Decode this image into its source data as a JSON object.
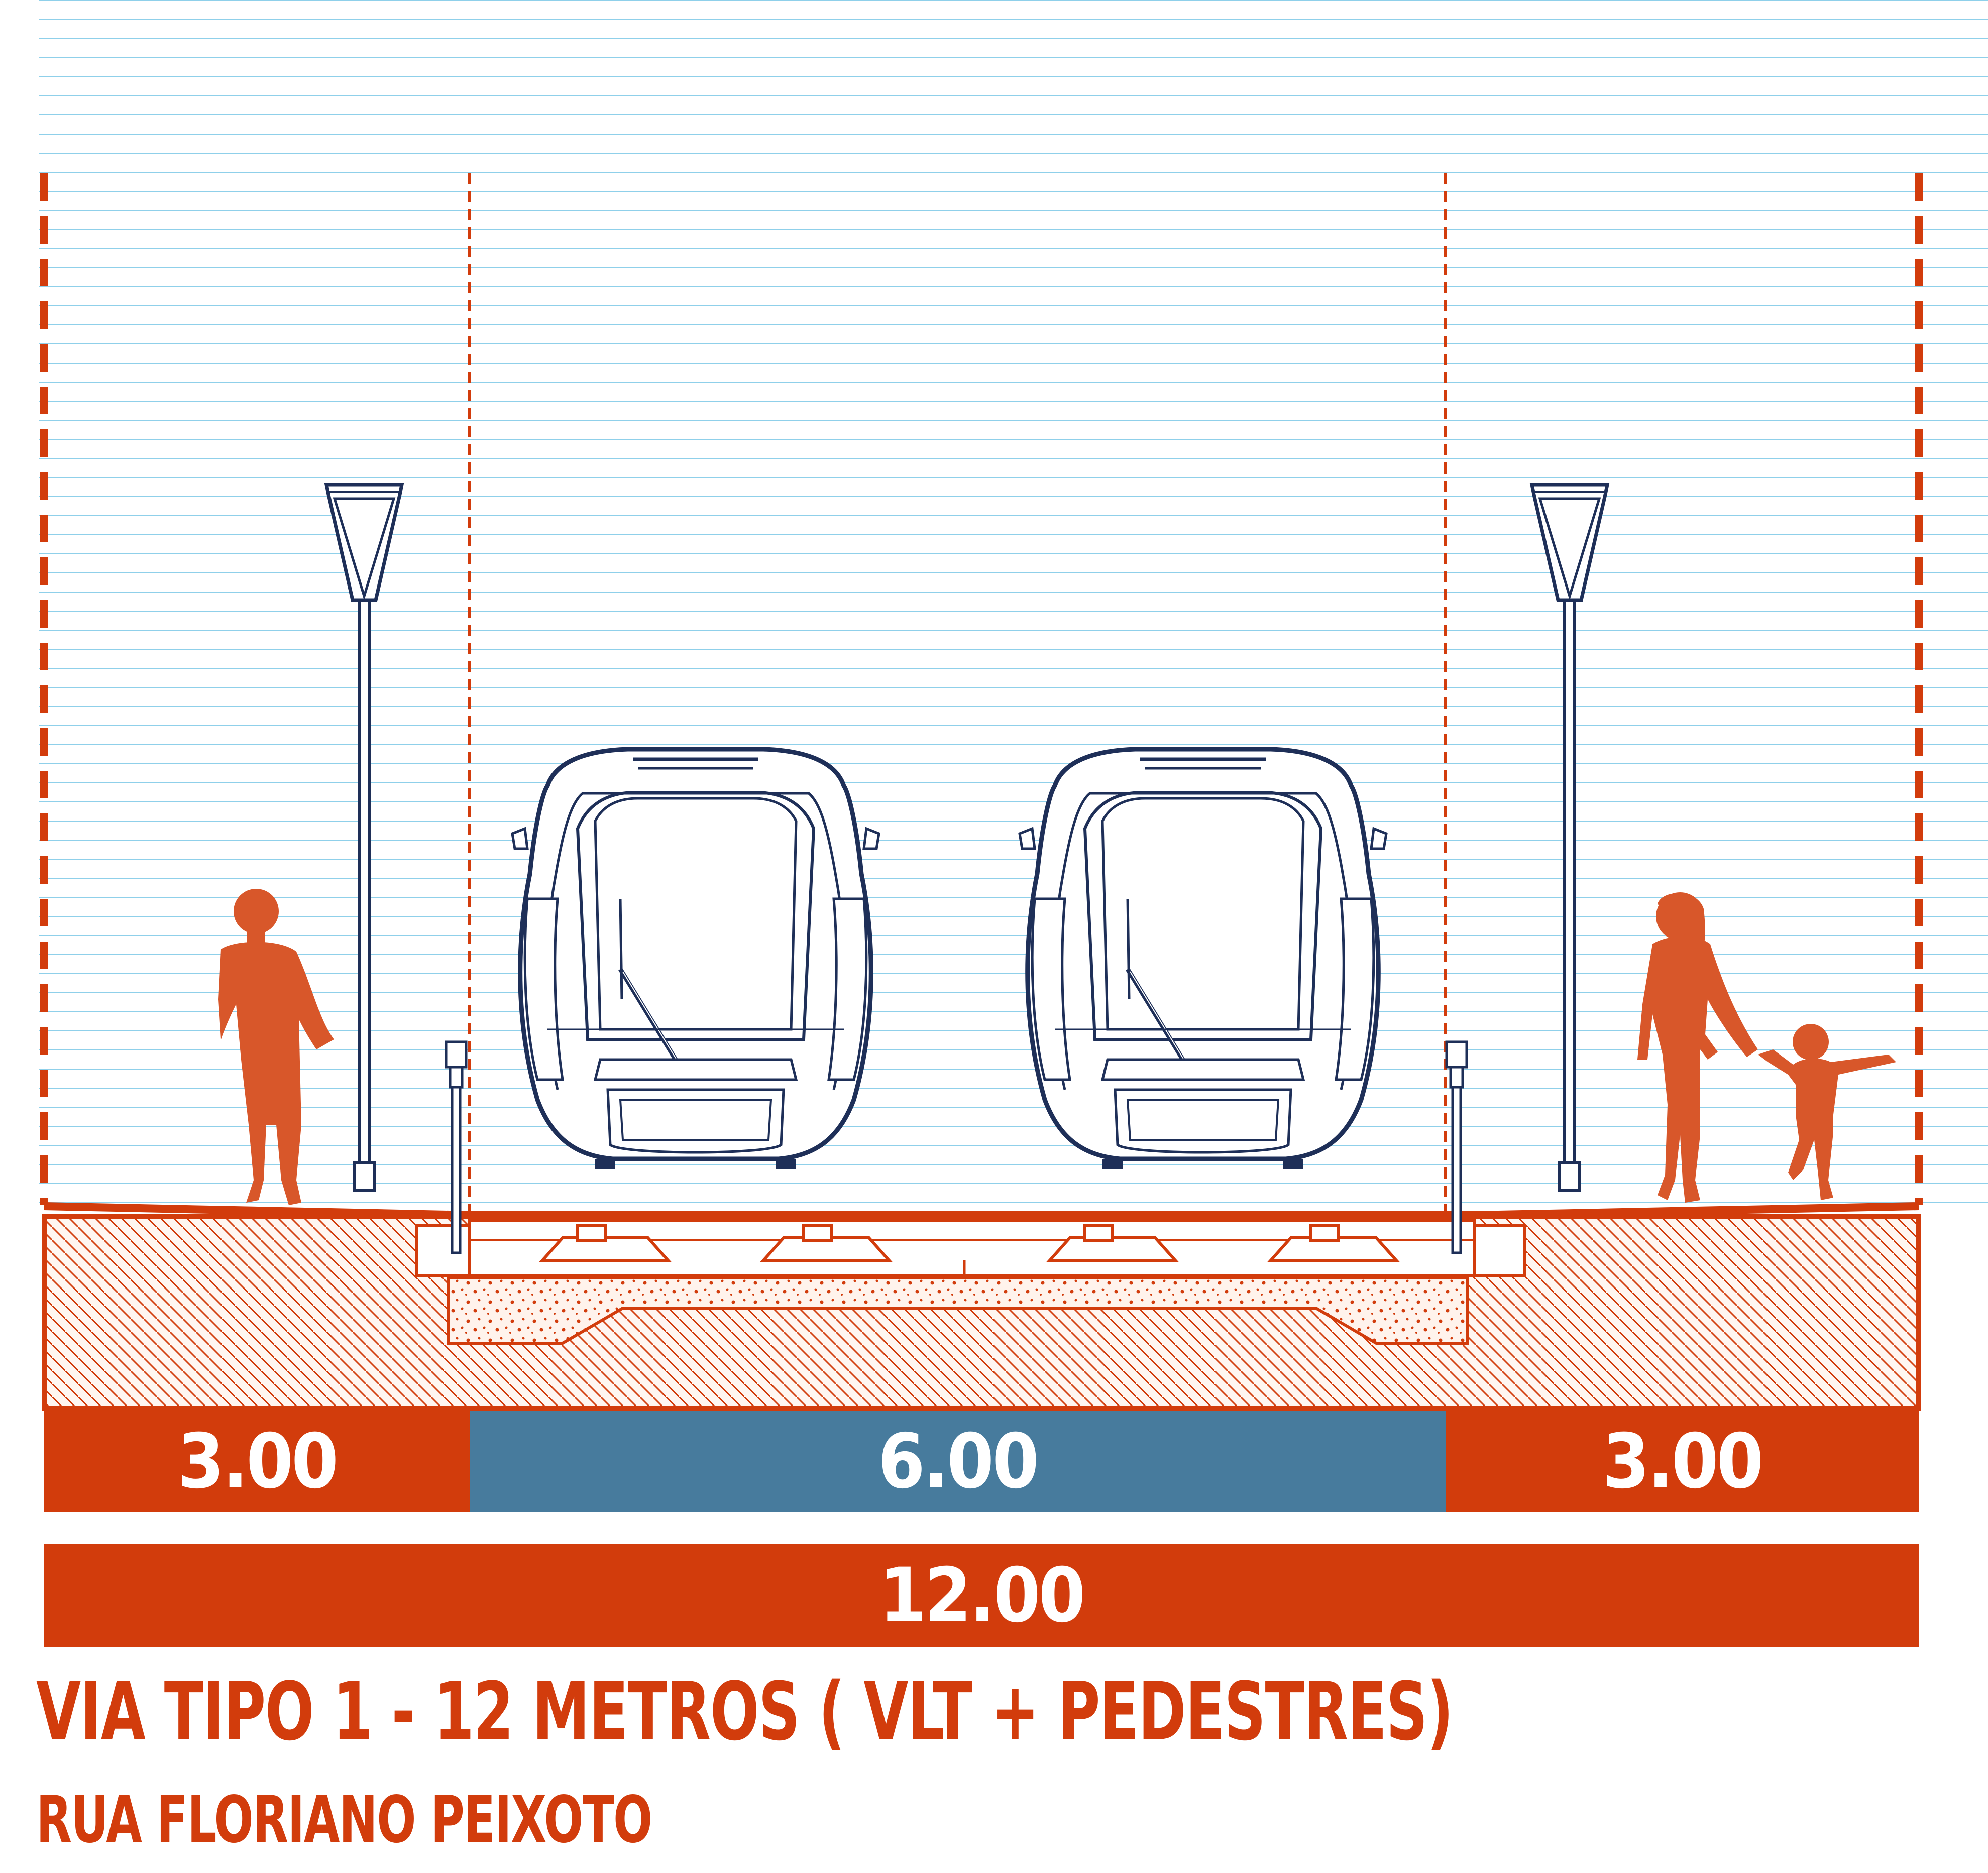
{
  "diagram": {
    "dimensions": {
      "left_sidewalk": "3.00",
      "vlt_track": "6.00",
      "right_sidewalk": "3.00",
      "total_width": "12.00"
    },
    "title": "VIA TIPO 1 - 12 METROS ( VLT + PEDESTRES)",
    "subtitle": "RUA FLORIANO PEIXOTO"
  },
  "colors": {
    "accent_orange": "#d23c0c",
    "track_blue": "#477b9d",
    "sky_line": "#8fd0ea",
    "vehicle_outline": "#1e2f58"
  },
  "elements": {
    "people": [
      "pedestrian-left",
      "pedestrian-woman",
      "pedestrian-child"
    ],
    "vehicles": [
      "vlt-tram",
      "vlt-tram"
    ],
    "fixtures": [
      "street-lamp",
      "street-lamp",
      "bollard",
      "bollard"
    ]
  }
}
